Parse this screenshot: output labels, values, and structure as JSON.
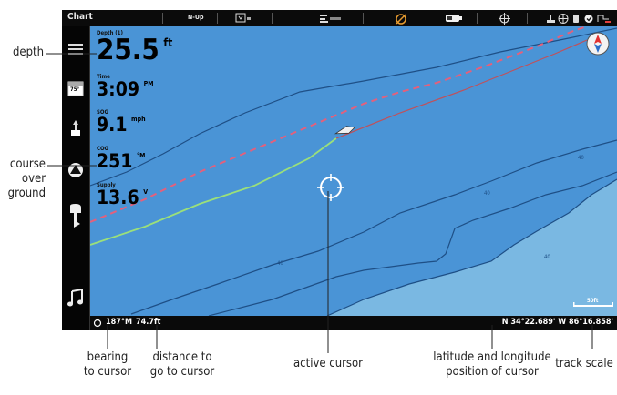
{
  "topbar": {
    "title": "Chart",
    "orientation": "N-Up",
    "items": [
      "gps-icon",
      "sonar-icon",
      "radar-icon",
      "battery-icon",
      "target-icon"
    ]
  },
  "sidebar": {
    "items": [
      {
        "name": "menu-icon"
      },
      {
        "name": "calendar-icon",
        "label": "75°"
      },
      {
        "name": "depth-sounder-icon"
      },
      {
        "name": "navigation-icon"
      },
      {
        "name": "motor-icon"
      },
      {
        "name": "music-icon"
      }
    ]
  },
  "databoxes": [
    {
      "label": "Depth (1)",
      "value": "25.5",
      "unit": "ft"
    },
    {
      "label": "Time",
      "value": "3:09",
      "unit": "PM"
    },
    {
      "label": "SOG",
      "value": "9.1",
      "unit": "mph"
    },
    {
      "label": "COG",
      "value": "251",
      "unit": "°M"
    },
    {
      "label": "Supply",
      "value": "13.6",
      "unit": "V"
    }
  ],
  "status": {
    "bearing": "187°M",
    "distance": "74.7ft",
    "position": "N 34°22.689' W 86°16.858'"
  },
  "scale": {
    "label": "50ft"
  },
  "contours": [
    "40",
    "40",
    "40",
    "40"
  ],
  "callouts": {
    "depth": "depth",
    "cog": [
      "course",
      "over",
      "ground"
    ],
    "bearing": [
      "bearing",
      "to cursor"
    ],
    "distance": [
      "distance to",
      "go to cursor"
    ],
    "cursor": [
      "active cursor"
    ],
    "latlon": [
      "latitude and longitude",
      "position of cursor"
    ],
    "scale": [
      "track scale"
    ]
  },
  "colors": {
    "water_shallow": "#4a94d6",
    "water_deep": "#7ab8e2",
    "contour": "#1e4f86",
    "track_old": "#e4607c",
    "track_new": "#9be07a"
  }
}
